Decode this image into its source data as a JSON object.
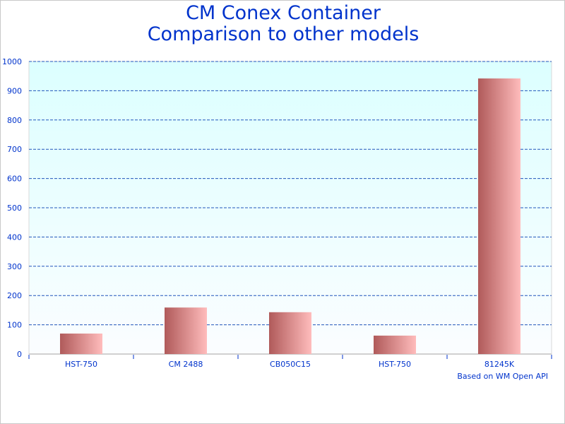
{
  "chart_data": {
    "type": "bar",
    "title": [
      "CM Conex Container",
      "Comparison to other models"
    ],
    "categories": [
      "HST-750",
      "CM 2488",
      "CB050C15",
      "HST-750",
      "81245K"
    ],
    "values": [
      70,
      159,
      143,
      63,
      942
    ],
    "ylim": [
      0,
      1000
    ],
    "yticks": [
      0,
      100,
      200,
      300,
      400,
      500,
      600,
      700,
      800,
      900,
      1000
    ],
    "grid": true,
    "footnote": "Based on WM Open API",
    "colors": {
      "text": "#0033cc",
      "grid": "#2255bb",
      "bar_dark": "#b05a5a",
      "bar_light": "#ffbcbc",
      "bg_top": "#dcffff",
      "bg_bottom": "#fbfdff"
    }
  }
}
